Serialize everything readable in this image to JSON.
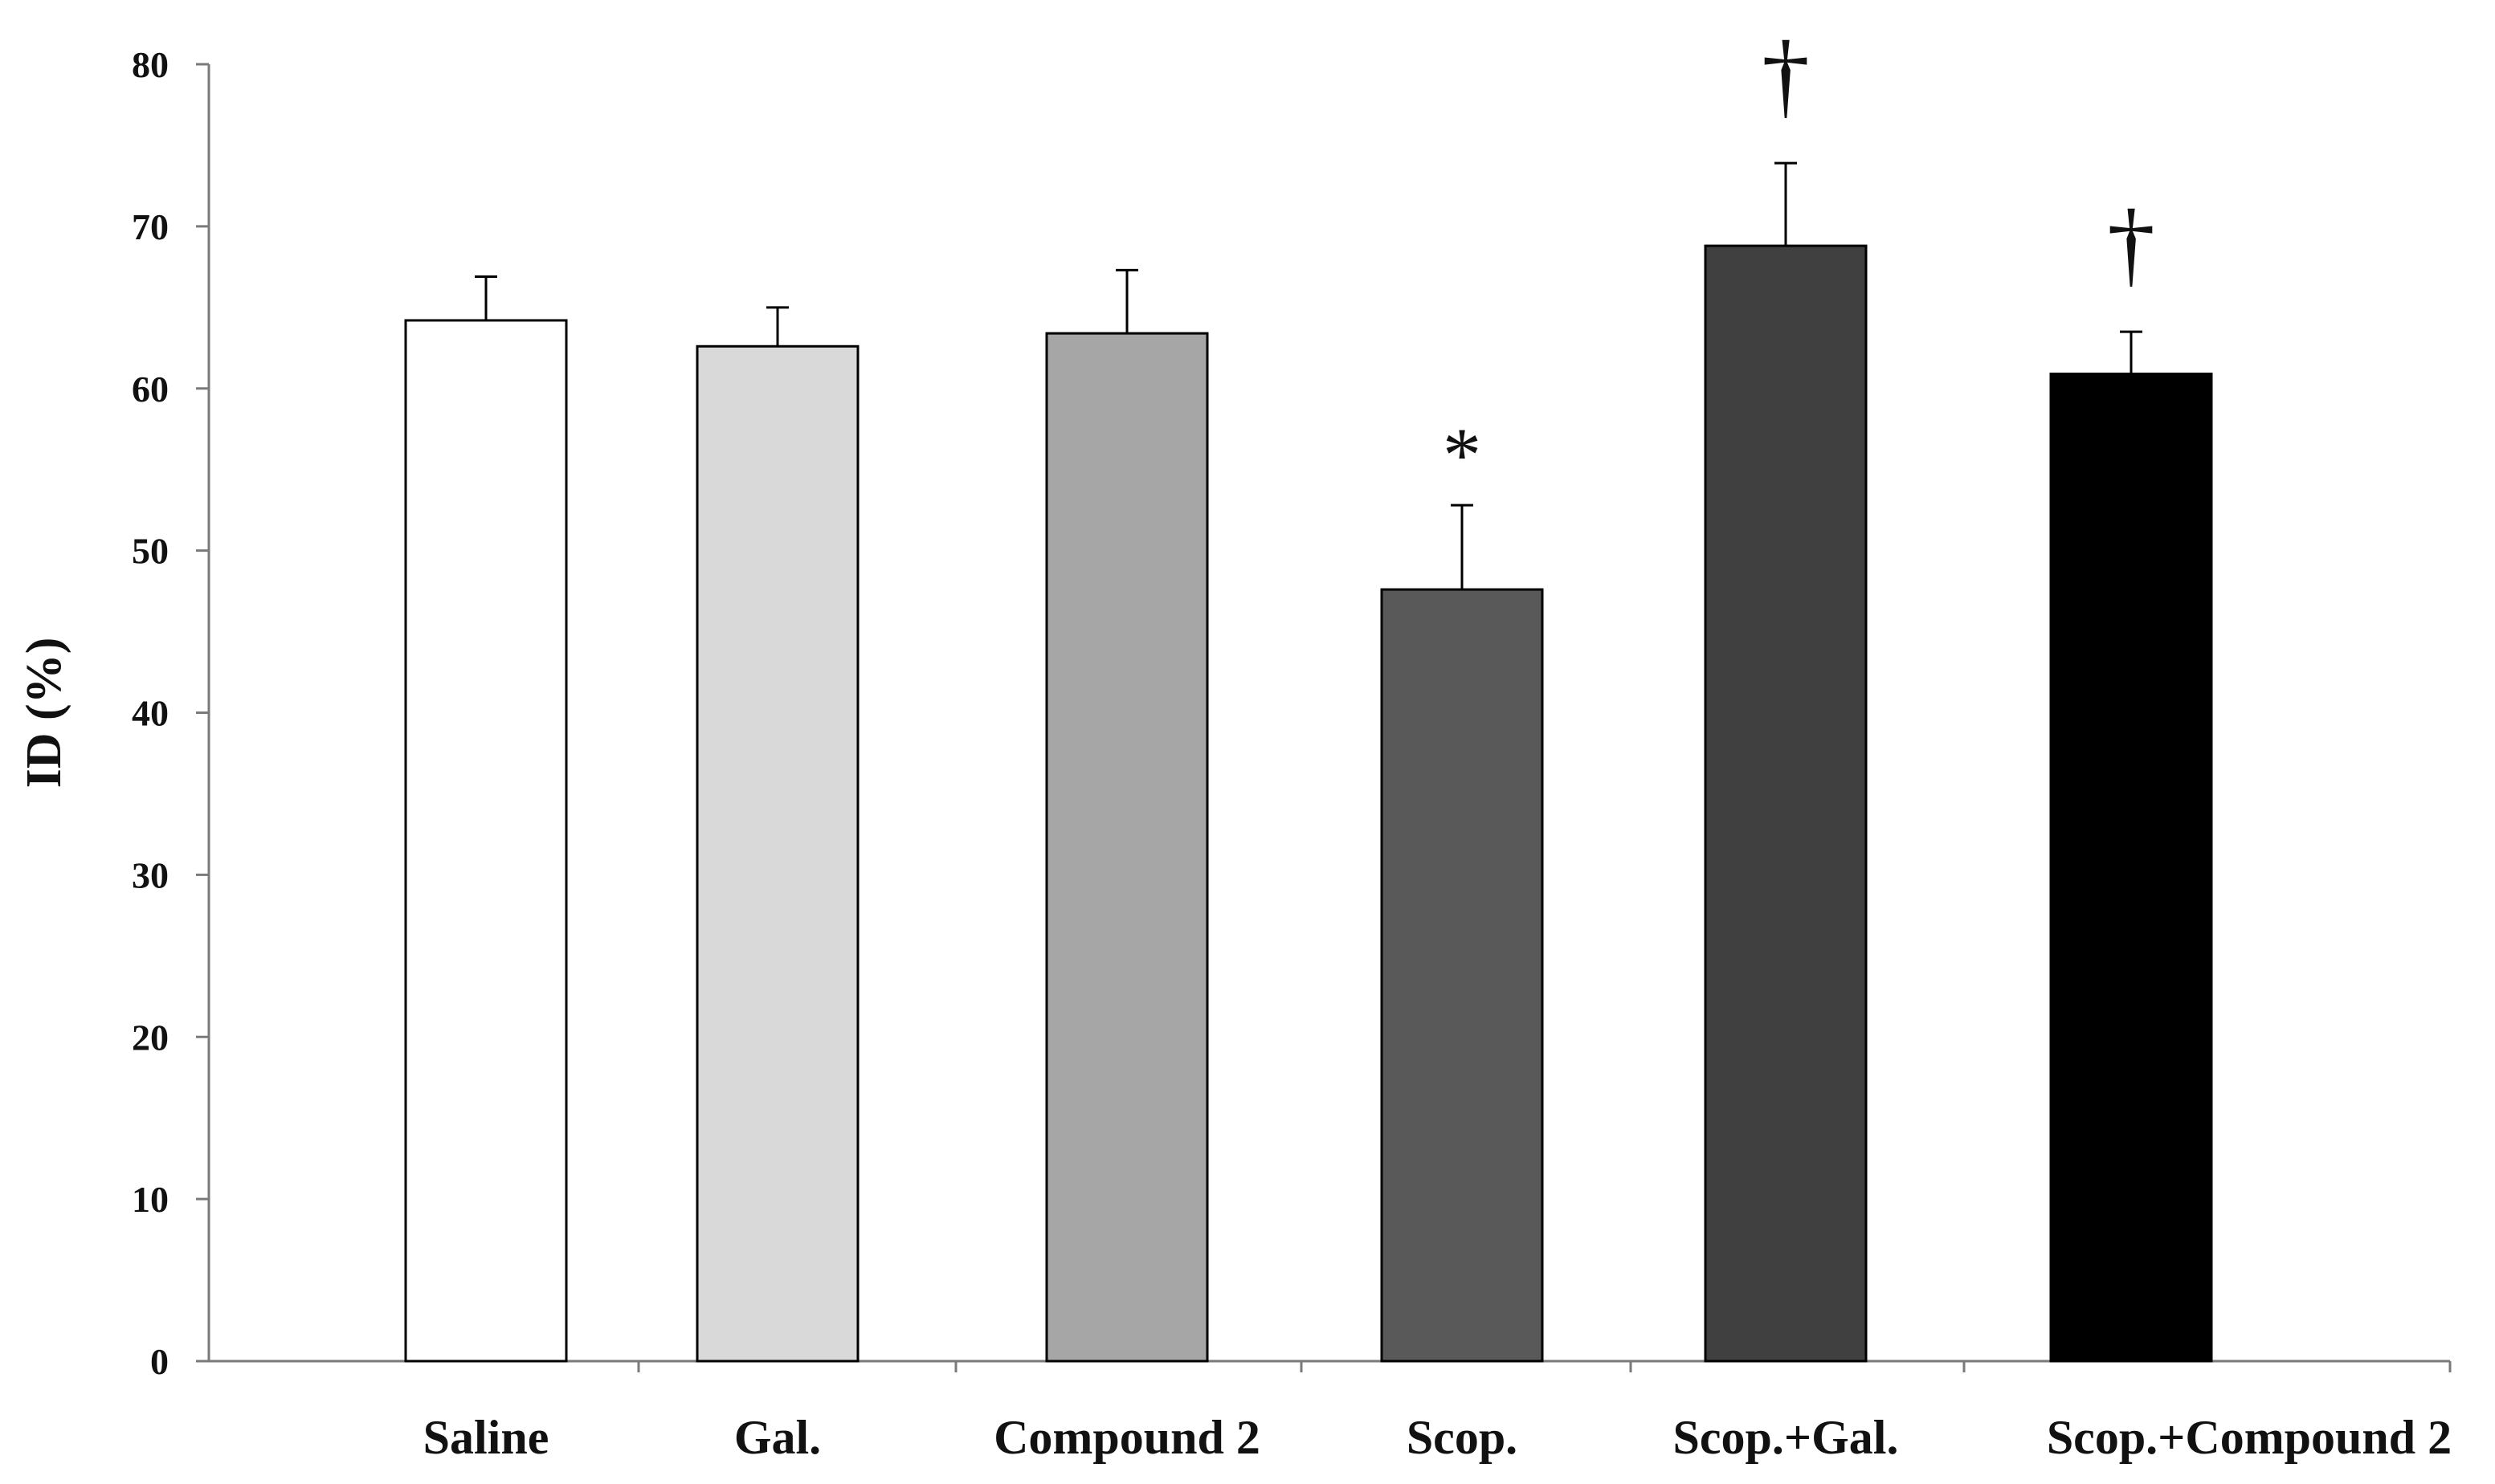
{
  "chart_data": {
    "type": "bar",
    "title": "",
    "xlabel": "",
    "ylabel": "ID (%)",
    "ylim": [
      0,
      80
    ],
    "yticks": [
      0,
      10,
      20,
      30,
      40,
      50,
      60,
      70,
      80
    ],
    "grid": false,
    "categories": [
      "Saline",
      "Gal.",
      "Compound 2",
      "Scop.",
      "Scop.+Gal.",
      "Scop.+Compound 2"
    ],
    "values": [
      64.2,
      62.6,
      63.4,
      47.6,
      68.8,
      60.9
    ],
    "errors": [
      2.7,
      2.4,
      3.9,
      5.2,
      5.1,
      2.6
    ],
    "colors": [
      "#ffffff",
      "#d9d9d9",
      "#a6a6a6",
      "#595959",
      "#404040",
      "#000000"
    ],
    "annotations": [
      "",
      "",
      "",
      "*",
      "†",
      "†"
    ]
  }
}
